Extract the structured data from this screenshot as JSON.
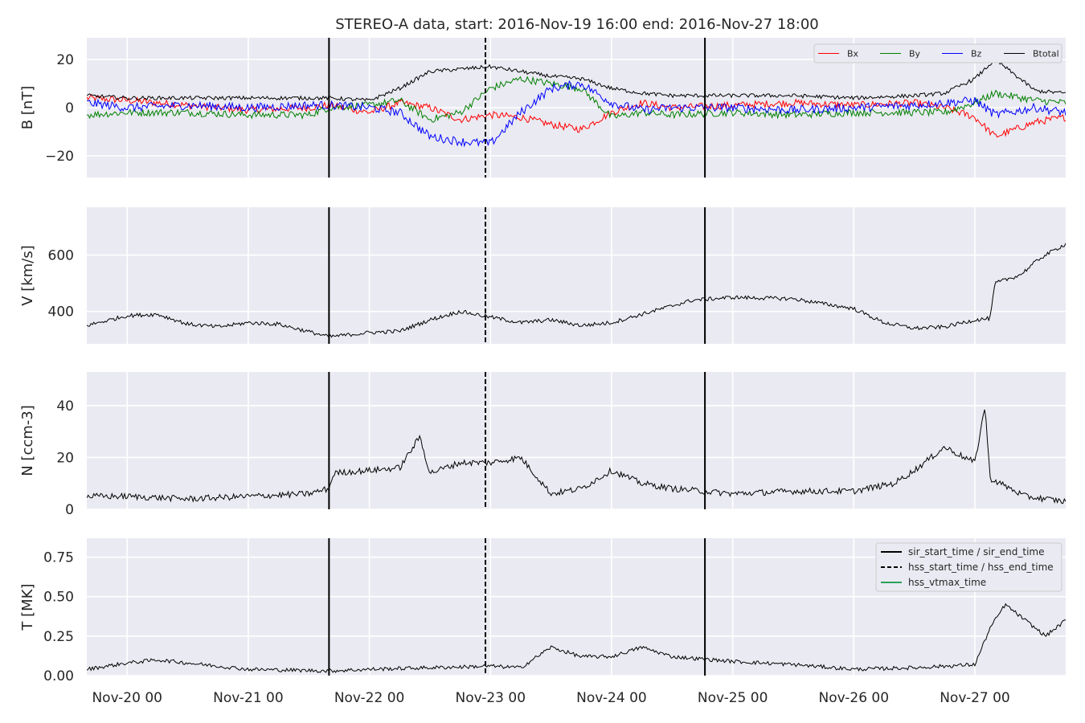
{
  "chart_data": {
    "type": "line",
    "title": "STEREO-A data, start: 2016-Nov-19 16:00  end: 2016-Nov-27 18:00",
    "x_range": [
      "2016-11-19T16:00",
      "2016-11-27T18:00"
    ],
    "x_ticks": [
      {
        "date": "2016-11-20T00:00",
        "label": "Nov-20 00"
      },
      {
        "date": "2016-11-21T00:00",
        "label": "Nov-21 00"
      },
      {
        "date": "2016-11-22T00:00",
        "label": "Nov-22 00"
      },
      {
        "date": "2016-11-23T00:00",
        "label": "Nov-23 00"
      },
      {
        "date": "2016-11-24T00:00",
        "label": "Nov-24 00"
      },
      {
        "date": "2016-11-25T00:00",
        "label": "Nov-25 00"
      },
      {
        "date": "2016-11-26T00:00",
        "label": "Nov-26 00"
      },
      {
        "date": "2016-11-27T00:00",
        "label": "Nov-27 00"
      }
    ],
    "markers": {
      "sir_start_time": "2016-11-21T16:00",
      "hss_start_time": "2016-11-22T23:00",
      "sir_end_time": "2016-11-24T18:30"
    },
    "colors": {
      "Bx": "#ff0000",
      "By": "#008000",
      "Bz": "#0000ff",
      "Btotal": "#000000",
      "background": "#eaeaf2",
      "grid": "#ffffff",
      "hss_vtmax": "#2ca05a"
    },
    "panels": [
      {
        "id": "B",
        "ylabel": "B [nT]",
        "ylim": [
          -29,
          29
        ],
        "yticks": [
          -20,
          0,
          20
        ],
        "tick_labels": [
          "−20",
          "0",
          "20"
        ],
        "legend": {
          "position": "top-right",
          "entries": [
            "Bx",
            "By",
            "Bz",
            "Btotal"
          ]
        },
        "series": [
          {
            "name": "Bx",
            "color": "#ff0000",
            "noise": 1.5,
            "x": [
              "2016-11-19T16:00",
              "2016-11-20T00:00",
              "2016-11-20T12:00",
              "2016-11-21T00:00",
              "2016-11-21T12:00",
              "2016-11-21T16:00",
              "2016-11-22T00:00",
              "2016-11-22T06:00",
              "2016-11-22T12:00",
              "2016-11-22T18:00",
              "2016-11-23T00:00",
              "2016-11-23T06:00",
              "2016-11-23T12:00",
              "2016-11-23T18:00",
              "2016-11-24T00:00",
              "2016-11-24T06:00",
              "2016-11-24T12:00",
              "2016-11-25T00:00",
              "2016-11-25T12:00",
              "2016-11-26T00:00",
              "2016-11-26T12:00",
              "2016-11-26T18:00",
              "2016-11-27T00:00",
              "2016-11-27T04:00",
              "2016-11-27T12:00",
              "2016-11-27T18:00"
            ],
            "y": [
              4,
              3,
              1,
              -1,
              0,
              1,
              -2,
              2,
              0,
              -5,
              -3,
              -4,
              -7,
              -9,
              -2,
              2,
              0,
              1,
              2,
              1,
              2,
              0,
              -4,
              -12,
              -6,
              -4
            ]
          },
          {
            "name": "By",
            "color": "#008000",
            "noise": 1.5,
            "x": [
              "2016-11-19T16:00",
              "2016-11-20T00:00",
              "2016-11-20T12:00",
              "2016-11-21T00:00",
              "2016-11-21T12:00",
              "2016-11-21T16:00",
              "2016-11-22T00:00",
              "2016-11-22T06:00",
              "2016-11-22T12:00",
              "2016-11-22T18:00",
              "2016-11-23T00:00",
              "2016-11-23T06:00",
              "2016-11-23T12:00",
              "2016-11-23T18:00",
              "2016-11-24T00:00",
              "2016-11-24T06:00",
              "2016-11-24T12:00",
              "2016-11-25T00:00",
              "2016-11-25T12:00",
              "2016-11-26T00:00",
              "2016-11-26T12:00",
              "2016-11-26T18:00",
              "2016-11-27T00:00",
              "2016-11-27T04:00",
              "2016-11-27T12:00",
              "2016-11-27T18:00"
            ],
            "y": [
              -3,
              -2,
              -2,
              -3,
              -3,
              0,
              1,
              3,
              -5,
              -2,
              8,
              12,
              10,
              8,
              -4,
              -2,
              -3,
              -2,
              -3,
              -2,
              -2,
              -2,
              2,
              6,
              3,
              2
            ]
          },
          {
            "name": "Bz",
            "color": "#0000ff",
            "noise": 1.8,
            "x": [
              "2016-11-19T16:00",
              "2016-11-20T00:00",
              "2016-11-20T12:00",
              "2016-11-21T00:00",
              "2016-11-21T12:00",
              "2016-11-21T16:00",
              "2016-11-22T00:00",
              "2016-11-22T06:00",
              "2016-11-22T12:00",
              "2016-11-22T18:00",
              "2016-11-23T00:00",
              "2016-11-23T06:00",
              "2016-11-23T12:00",
              "2016-11-23T18:00",
              "2016-11-24T00:00",
              "2016-11-24T06:00",
              "2016-11-24T12:00",
              "2016-11-25T00:00",
              "2016-11-25T12:00",
              "2016-11-26T00:00",
              "2016-11-26T12:00",
              "2016-11-26T18:00",
              "2016-11-27T00:00",
              "2016-11-27T04:00",
              "2016-11-27T12:00",
              "2016-11-27T18:00"
            ],
            "y": [
              2,
              0,
              1,
              0,
              1,
              1,
              0,
              -2,
              -12,
              -14,
              -15,
              -2,
              8,
              10,
              2,
              -1,
              0,
              0,
              -1,
              0,
              1,
              2,
              3,
              -3,
              0,
              -2
            ]
          },
          {
            "name": "Btotal",
            "color": "#000000",
            "noise": 0.8,
            "x": [
              "2016-11-19T16:00",
              "2016-11-20T00:00",
              "2016-11-20T12:00",
              "2016-11-21T00:00",
              "2016-11-21T12:00",
              "2016-11-21T16:00",
              "2016-11-22T00:00",
              "2016-11-22T06:00",
              "2016-11-22T12:00",
              "2016-11-22T18:00",
              "2016-11-23T00:00",
              "2016-11-23T06:00",
              "2016-11-23T12:00",
              "2016-11-23T18:00",
              "2016-11-24T00:00",
              "2016-11-24T06:00",
              "2016-11-24T12:00",
              "2016-11-25T00:00",
              "2016-11-25T12:00",
              "2016-11-26T00:00",
              "2016-11-26T12:00",
              "2016-11-26T18:00",
              "2016-11-27T00:00",
              "2016-11-27T04:00",
              "2016-11-27T12:00",
              "2016-11-27T18:00"
            ],
            "y": [
              5,
              4,
              4,
              4,
              4,
              4,
              3,
              8,
              15,
              16,
              17,
              15,
              13,
              12,
              8,
              6,
              5,
              5,
              5,
              4,
              5,
              6,
              12,
              20,
              7,
              6
            ]
          }
        ]
      },
      {
        "id": "V",
        "ylabel": "V [km/s]",
        "ylim": [
          285,
          770
        ],
        "yticks": [
          400,
          600
        ],
        "tick_labels": [
          "400",
          "600"
        ],
        "series": [
          {
            "name": "V",
            "color": "#000000",
            "noise": 7,
            "x": [
              "2016-11-19T16:00",
              "2016-11-20T00:00",
              "2016-11-20T06:00",
              "2016-11-20T12:00",
              "2016-11-20T18:00",
              "2016-11-21T00:00",
              "2016-11-21T06:00",
              "2016-11-21T16:00",
              "2016-11-22T00:00",
              "2016-11-22T06:00",
              "2016-11-22T12:00",
              "2016-11-22T18:00",
              "2016-11-23T00:00",
              "2016-11-23T06:00",
              "2016-11-23T12:00",
              "2016-11-23T18:00",
              "2016-11-24T00:00",
              "2016-11-24T08:00",
              "2016-11-24T16:00",
              "2016-11-25T00:00",
              "2016-11-25T12:00",
              "2016-11-26T00:00",
              "2016-11-26T06:00",
              "2016-11-26T12:00",
              "2016-11-26T18:00",
              "2016-11-27T00:00",
              "2016-11-27T03:00",
              "2016-11-27T04:00",
              "2016-11-27T09:00",
              "2016-11-27T13:00",
              "2016-11-27T18:00"
            ],
            "y": [
              350,
              385,
              390,
              355,
              345,
              360,
              355,
              310,
              325,
              330,
              370,
              400,
              380,
              360,
              370,
              350,
              360,
              400,
              440,
              450,
              445,
              410,
              360,
              340,
              345,
              370,
              375,
              500,
              530,
              590,
              640
            ]
          }
        ]
      },
      {
        "id": "N",
        "ylabel": "N [ccm-3]",
        "ylim": [
          0,
          53
        ],
        "yticks": [
          0,
          20,
          40
        ],
        "tick_labels": [
          "0",
          "20",
          "40"
        ],
        "series": [
          {
            "name": "N",
            "color": "#000000",
            "noise": 1.2,
            "x": [
              "2016-11-19T16:00",
              "2016-11-20T00:00",
              "2016-11-20T12:00",
              "2016-11-21T00:00",
              "2016-11-21T12:00",
              "2016-11-21T16:00",
              "2016-11-21T17:00",
              "2016-11-22T00:00",
              "2016-11-22T06:00",
              "2016-11-22T10:00",
              "2016-11-22T12:00",
              "2016-11-22T18:00",
              "2016-11-23T00:00",
              "2016-11-23T06:00",
              "2016-11-23T12:00",
              "2016-11-23T18:00",
              "2016-11-24T00:00",
              "2016-11-24T06:00",
              "2016-11-24T12:00",
              "2016-11-25T00:00",
              "2016-11-25T12:00",
              "2016-11-26T00:00",
              "2016-11-26T08:00",
              "2016-11-26T12:00",
              "2016-11-26T18:00",
              "2016-11-27T00:00",
              "2016-11-27T02:00",
              "2016-11-27T03:00",
              "2016-11-27T10:00",
              "2016-11-27T18:00"
            ],
            "y": [
              5,
              5,
              4,
              5,
              6,
              8,
              14,
              15,
              16,
              28,
              14,
              18,
              18,
              20,
              6,
              8,
              15,
              10,
              8,
              6,
              7,
              7,
              10,
              15,
              24,
              18,
              40,
              12,
              5,
              3
            ]
          }
        ]
      },
      {
        "id": "T",
        "ylabel": "T [MK]",
        "ylim": [
          0,
          0.87
        ],
        "yticks": [
          0.0,
          0.25,
          0.5,
          0.75
        ],
        "tick_labels": [
          "0.00",
          "0.25",
          "0.50",
          "0.75"
        ],
        "legend": {
          "position": "top-right",
          "entries": [
            "sir_start_time / sir_end_time",
            "hss_start_time / hss_end_time",
            "hss_vtmax_time"
          ]
        },
        "series": [
          {
            "name": "T",
            "color": "#000000",
            "noise": 0.012,
            "x": [
              "2016-11-19T16:00",
              "2016-11-20T00:00",
              "2016-11-20T06:00",
              "2016-11-21T00:00",
              "2016-11-21T16:00",
              "2016-11-22T00:00",
              "2016-11-22T12:00",
              "2016-11-23T00:00",
              "2016-11-23T06:00",
              "2016-11-23T12:00",
              "2016-11-23T18:00",
              "2016-11-24T00:00",
              "2016-11-24T06:00",
              "2016-11-24T12:00",
              "2016-11-25T00:00",
              "2016-11-25T12:00",
              "2016-11-26T00:00",
              "2016-11-26T12:00",
              "2016-11-27T00:00",
              "2016-11-27T03:00",
              "2016-11-27T06:00",
              "2016-11-27T10:00",
              "2016-11-27T14:00",
              "2016-11-27T18:00"
            ],
            "y": [
              0.04,
              0.08,
              0.1,
              0.04,
              0.03,
              0.04,
              0.05,
              0.06,
              0.05,
              0.18,
              0.12,
              0.12,
              0.18,
              0.12,
              0.09,
              0.07,
              0.04,
              0.05,
              0.07,
              0.3,
              0.45,
              0.35,
              0.25,
              0.35
            ]
          }
        ]
      }
    ]
  }
}
